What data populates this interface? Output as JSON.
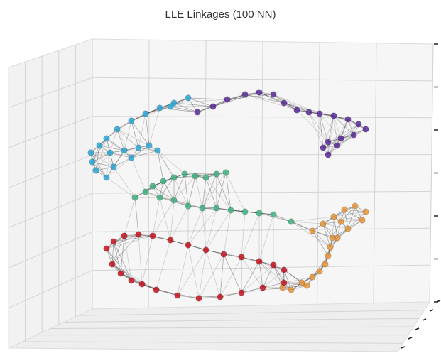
{
  "chart_data": {
    "type": "scatter",
    "title": "LLE Linkages (100 NN)",
    "projection": "3d",
    "grid": true,
    "legend": "none",
    "colors": {
      "purple": "#5b2a99",
      "cyan": "#2ba7d6",
      "green": "#3fb27f",
      "orange": "#e9953a",
      "red": "#c4131f",
      "edge": "#111111"
    },
    "series": [
      {
        "color": "purple",
        "points": [
          [
            278,
            158
          ],
          [
            300,
            150
          ],
          [
            320,
            140
          ],
          [
            345,
            133
          ],
          [
            365,
            130
          ],
          [
            385,
            133
          ],
          [
            400,
            145
          ],
          [
            418,
            155
          ],
          [
            435,
            158
          ],
          [
            450,
            160
          ],
          [
            470,
            163
          ],
          [
            490,
            168
          ],
          [
            505,
            175
          ],
          [
            515,
            182
          ],
          [
            498,
            190
          ],
          [
            480,
            195
          ],
          [
            462,
            200
          ],
          [
            455,
            208
          ],
          [
            462,
            218
          ],
          [
            475,
            205
          ]
        ]
      },
      {
        "color": "cyan",
        "points": [
          [
            265,
            138
          ],
          [
            245,
            145
          ],
          [
            225,
            152
          ],
          [
            205,
            160
          ],
          [
            185,
            170
          ],
          [
            165,
            182
          ],
          [
            150,
            195
          ],
          [
            140,
            205
          ],
          [
            128,
            215
          ],
          [
            130,
            228
          ],
          [
            135,
            240
          ],
          [
            150,
            250
          ],
          [
            155,
            215
          ],
          [
            175,
            212
          ],
          [
            195,
            208
          ],
          [
            210,
            205
          ],
          [
            222,
            212
          ],
          [
            160,
            235
          ],
          [
            185,
            222
          ],
          [
            240,
            150
          ]
        ]
      },
      {
        "color": "green",
        "points": [
          [
            190,
            278
          ],
          [
            205,
            270
          ],
          [
            215,
            262
          ],
          [
            230,
            255
          ],
          [
            245,
            250
          ],
          [
            260,
            245
          ],
          [
            275,
            248
          ],
          [
            290,
            250
          ],
          [
            305,
            245
          ],
          [
            318,
            243
          ],
          [
            225,
            278
          ],
          [
            245,
            282
          ],
          [
            265,
            290
          ],
          [
            285,
            293
          ],
          [
            305,
            293
          ],
          [
            325,
            296
          ],
          [
            345,
            298
          ],
          [
            365,
            300
          ],
          [
            385,
            302
          ],
          [
            410,
            312
          ]
        ]
      },
      {
        "color": "orange",
        "points": [
          [
            440,
            325
          ],
          [
            455,
            315
          ],
          [
            470,
            305
          ],
          [
            485,
            295
          ],
          [
            500,
            290
          ],
          [
            515,
            298
          ],
          [
            510,
            310
          ],
          [
            490,
            322
          ],
          [
            475,
            335
          ],
          [
            465,
            348
          ],
          [
            462,
            360
          ],
          [
            458,
            372
          ],
          [
            450,
            382
          ],
          [
            440,
            390
          ],
          [
            425,
            398
          ],
          [
            410,
            408
          ],
          [
            398,
            405
          ],
          [
            432,
            402
          ],
          [
            468,
            335
          ],
          [
            480,
            312
          ]
        ]
      },
      {
        "color": "red",
        "points": [
          [
            150,
            350
          ],
          [
            160,
            340
          ],
          [
            175,
            332
          ],
          [
            195,
            330
          ],
          [
            215,
            332
          ],
          [
            240,
            338
          ],
          [
            265,
            345
          ],
          [
            290,
            352
          ],
          [
            315,
            358
          ],
          [
            340,
            362
          ],
          [
            365,
            368
          ],
          [
            385,
            373
          ],
          [
            400,
            380
          ],
          [
            400,
            398
          ],
          [
            370,
            405
          ],
          [
            340,
            412
          ],
          [
            310,
            418
          ],
          [
            280,
            420
          ],
          [
            250,
            416
          ],
          [
            220,
            408
          ],
          [
            200,
            400
          ],
          [
            185,
            395
          ],
          [
            170,
            385
          ],
          [
            158,
            372
          ]
        ]
      }
    ]
  }
}
